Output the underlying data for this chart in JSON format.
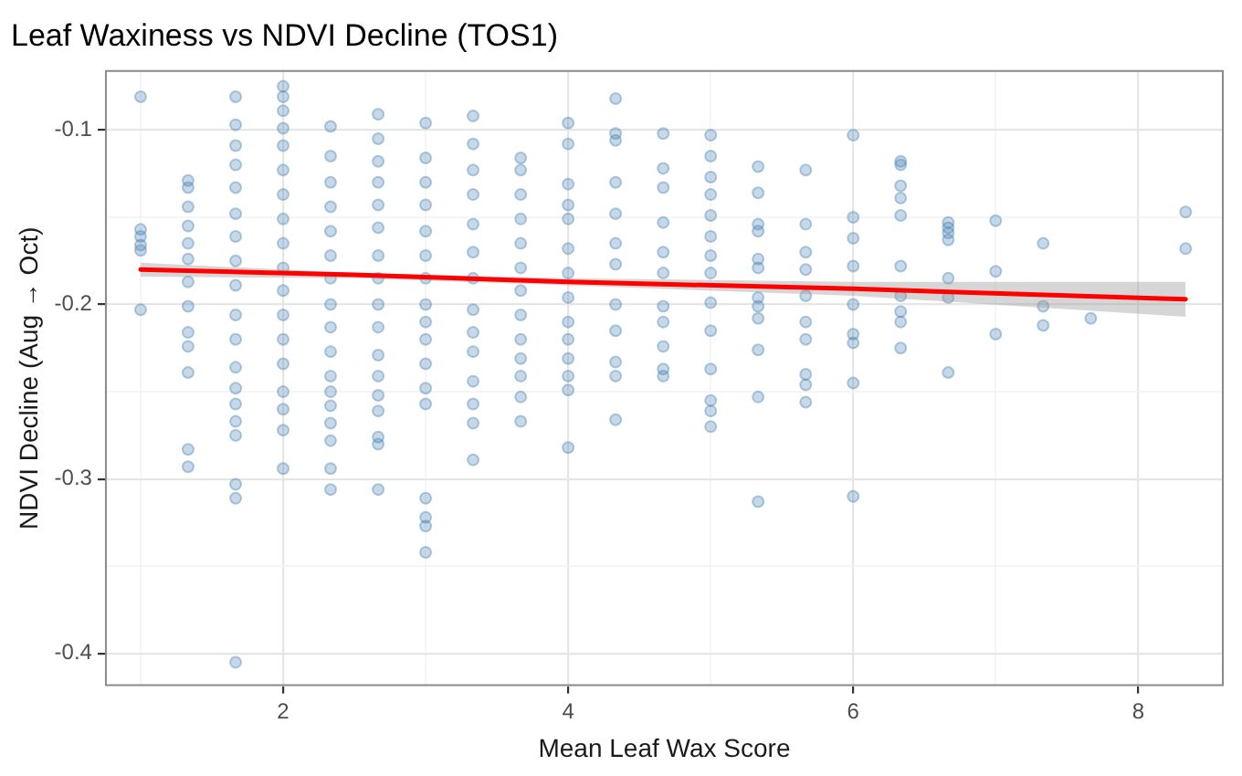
{
  "chart_data": {
    "type": "scatter",
    "title": "Leaf Waxiness vs NDVI Decline (TOS1)",
    "xlabel": "Mean Leaf Wax Score",
    "ylabel": "NDVI Decline (Aug → Oct)",
    "xlim": [
      0.75,
      8.6
    ],
    "ylim": [
      -0.4187,
      -0.0657
    ],
    "xticks": [
      {
        "value": 1,
        "label": null
      },
      2,
      {
        "value": 3,
        "label": null
      },
      4,
      {
        "value": 5,
        "label": null
      },
      6,
      {
        "value": 7,
        "label": null
      },
      8
    ],
    "yticks": [
      -0.4,
      {
        "value": -0.35,
        "label": null
      },
      -0.3,
      {
        "value": -0.25,
        "label": null
      },
      -0.2,
      {
        "value": -0.15,
        "label": null
      },
      -0.1
    ],
    "grid": true,
    "legend": false,
    "marker": "circle",
    "series": [
      {
        "color": "#4682b4",
        "x": [
          1,
          1,
          1,
          1,
          1,
          1,
          1.333,
          1.333,
          1.333,
          1.333,
          1.333,
          1.333,
          1.333,
          1.333,
          1.333,
          1.333,
          1.333,
          1.333,
          1.333,
          1.667,
          1.667,
          1.667,
          1.667,
          1.667,
          1.667,
          1.667,
          1.667,
          1.667,
          1.667,
          1.667,
          1.667,
          1.667,
          1.667,
          1.667,
          1.667,
          1.667,
          1.667,
          1.667,
          2,
          2,
          2,
          2,
          2,
          2,
          2,
          2,
          2,
          2,
          2,
          2,
          2,
          2,
          2,
          2,
          2,
          2,
          2.333,
          2.333,
          2.333,
          2.333,
          2.333,
          2.333,
          2.333,
          2.333,
          2.333,
          2.333,
          2.333,
          2.333,
          2.333,
          2.333,
          2.333,
          2.333,
          2.333,
          2.667,
          2.667,
          2.667,
          2.667,
          2.667,
          2.667,
          2.667,
          2.667,
          2.667,
          2.667,
          2.667,
          2.667,
          2.667,
          2.667,
          2.667,
          2.667,
          2.667,
          3,
          3,
          3,
          3,
          3,
          3,
          3,
          3,
          3,
          3,
          3,
          3,
          3,
          3,
          3,
          3,
          3,
          3.333,
          3.333,
          3.333,
          3.333,
          3.333,
          3.333,
          3.333,
          3.333,
          3.333,
          3.333,
          3.333,
          3.333,
          3.333,
          3.333,
          3.667,
          3.667,
          3.667,
          3.667,
          3.667,
          3.667,
          3.667,
          3.667,
          3.667,
          3.667,
          3.667,
          3.667,
          3.667,
          4,
          4,
          4,
          4,
          4,
          4,
          4,
          4,
          4,
          4,
          4,
          4,
          4,
          4,
          4.333,
          4.333,
          4.333,
          4.333,
          4.333,
          4.333,
          4.333,
          4.333,
          4.333,
          4.333,
          4.333,
          4.333,
          4.667,
          4.667,
          4.667,
          4.667,
          4.667,
          4.667,
          4.667,
          4.667,
          4.667,
          4.667,
          4.667,
          5,
          5,
          5,
          5,
          5,
          5,
          5,
          5,
          5,
          5,
          5,
          5,
          5,
          5,
          5.333,
          5.333,
          5.333,
          5.333,
          5.333,
          5.333,
          5.333,
          5.333,
          5.333,
          5.333,
          5.333,
          5.333,
          5.667,
          5.667,
          5.667,
          5.667,
          5.667,
          5.667,
          5.667,
          5.667,
          5.667,
          5.667,
          6,
          6,
          6,
          6,
          6,
          6,
          6,
          6,
          6,
          6.333,
          6.333,
          6.333,
          6.333,
          6.333,
          6.333,
          6.333,
          6.333,
          6.333,
          6.333,
          6.667,
          6.667,
          6.667,
          6.667,
          6.667,
          6.667,
          6.667,
          7,
          7,
          7,
          7.333,
          7.333,
          7.333,
          7.667,
          8.333,
          8.333
        ],
        "values": [
          -0.081,
          -0.157,
          -0.161,
          -0.166,
          -0.169,
          -0.203,
          -0.129,
          -0.133,
          -0.144,
          -0.155,
          -0.165,
          -0.174,
          -0.187,
          -0.201,
          -0.216,
          -0.224,
          -0.239,
          -0.283,
          -0.293,
          -0.081,
          -0.097,
          -0.109,
          -0.12,
          -0.133,
          -0.148,
          -0.161,
          -0.175,
          -0.189,
          -0.206,
          -0.22,
          -0.236,
          -0.248,
          -0.257,
          -0.267,
          -0.275,
          -0.303,
          -0.311,
          -0.405,
          -0.075,
          -0.081,
          -0.089,
          -0.099,
          -0.109,
          -0.123,
          -0.137,
          -0.151,
          -0.165,
          -0.179,
          -0.192,
          -0.206,
          -0.22,
          -0.234,
          -0.25,
          -0.26,
          -0.272,
          -0.294,
          -0.098,
          -0.115,
          -0.13,
          -0.144,
          -0.158,
          -0.172,
          -0.185,
          -0.2,
          -0.213,
          -0.227,
          -0.241,
          -0.25,
          -0.258,
          -0.268,
          -0.278,
          -0.294,
          -0.306,
          -0.091,
          -0.105,
          -0.118,
          -0.13,
          -0.143,
          -0.156,
          -0.172,
          -0.185,
          -0.2,
          -0.213,
          -0.229,
          -0.241,
          -0.252,
          -0.261,
          -0.276,
          -0.28,
          -0.306,
          -0.096,
          -0.116,
          -0.13,
          -0.143,
          -0.158,
          -0.172,
          -0.185,
          -0.2,
          -0.21,
          -0.22,
          -0.234,
          -0.248,
          -0.257,
          -0.311,
          -0.322,
          -0.327,
          -0.342,
          -0.092,
          -0.108,
          -0.123,
          -0.137,
          -0.154,
          -0.17,
          -0.185,
          -0.203,
          -0.216,
          -0.227,
          -0.244,
          -0.257,
          -0.268,
          -0.289,
          -0.116,
          -0.123,
          -0.137,
          -0.151,
          -0.165,
          -0.179,
          -0.192,
          -0.206,
          -0.22,
          -0.231,
          -0.241,
          -0.253,
          -0.267,
          -0.096,
          -0.108,
          -0.131,
          -0.143,
          -0.151,
          -0.168,
          -0.182,
          -0.196,
          -0.21,
          -0.22,
          -0.231,
          -0.241,
          -0.249,
          -0.282,
          -0.082,
          -0.102,
          -0.106,
          -0.13,
          -0.148,
          -0.165,
          -0.177,
          -0.2,
          -0.215,
          -0.233,
          -0.241,
          -0.266,
          -0.102,
          -0.122,
          -0.133,
          -0.153,
          -0.17,
          -0.182,
          -0.201,
          -0.21,
          -0.224,
          -0.237,
          -0.241,
          -0.103,
          -0.115,
          -0.127,
          -0.137,
          -0.149,
          -0.161,
          -0.172,
          -0.182,
          -0.199,
          -0.215,
          -0.237,
          -0.255,
          -0.261,
          -0.27,
          -0.121,
          -0.136,
          -0.154,
          -0.158,
          -0.174,
          -0.179,
          -0.196,
          -0.201,
          -0.208,
          -0.226,
          -0.253,
          -0.313,
          -0.123,
          -0.154,
          -0.17,
          -0.18,
          -0.195,
          -0.21,
          -0.22,
          -0.24,
          -0.246,
          -0.256,
          -0.103,
          -0.15,
          -0.162,
          -0.178,
          -0.2,
          -0.217,
          -0.222,
          -0.245,
          -0.31,
          -0.118,
          -0.12,
          -0.132,
          -0.139,
          -0.149,
          -0.178,
          -0.195,
          -0.204,
          -0.21,
          -0.225,
          -0.153,
          -0.156,
          -0.159,
          -0.163,
          -0.185,
          -0.196,
          -0.239,
          -0.152,
          -0.181,
          -0.217,
          -0.165,
          -0.201,
          -0.212,
          -0.208,
          -0.147,
          -0.168
        ]
      },
      {
        "type": "line",
        "marker": "none",
        "color": "#ff0000",
        "x": [
          1,
          2.5,
          4,
          6,
          8.333
        ],
        "values": [
          -0.18,
          -0.183,
          -0.187,
          -0.191,
          -0.197
        ],
        "lower": [
          -0.184,
          -0.185,
          -0.189,
          -0.195,
          -0.207
        ],
        "upper": [
          -0.176,
          -0.182,
          -0.185,
          -0.187,
          -0.187
        ]
      }
    ]
  }
}
